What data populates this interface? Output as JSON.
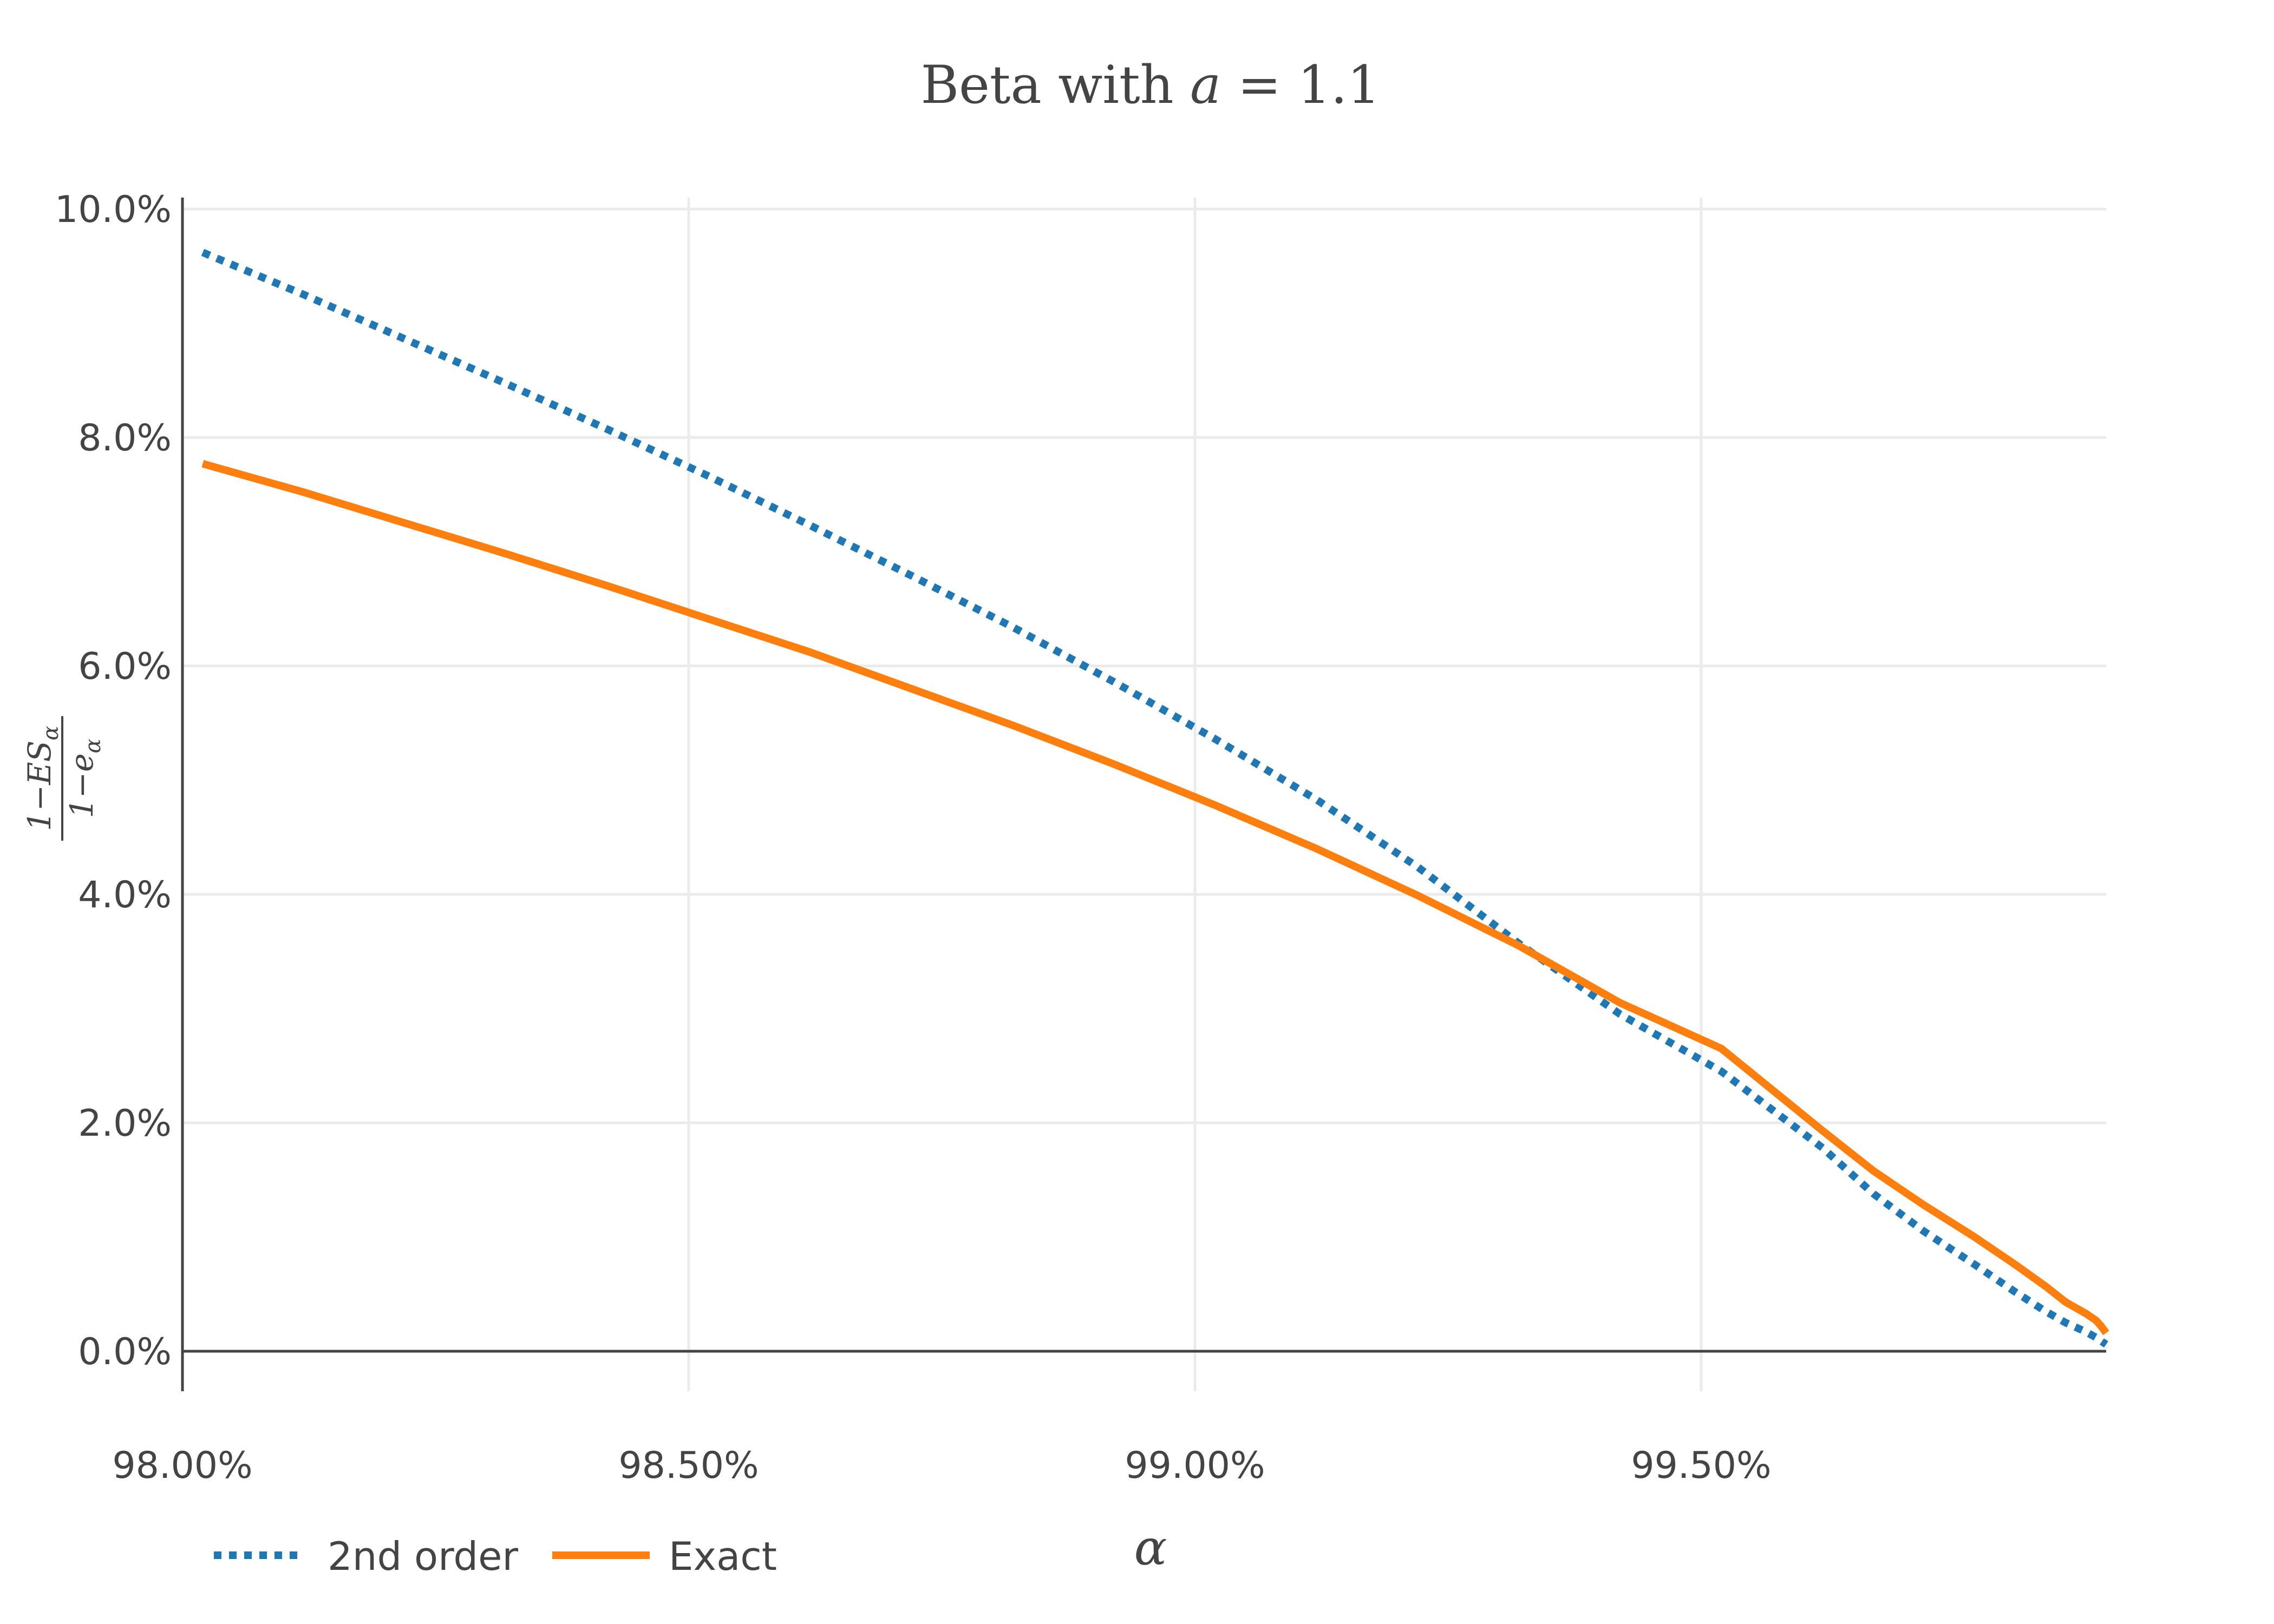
{
  "chart_data": {
    "type": "line",
    "title": {
      "prefix": "Beta with ",
      "variable": "a",
      "suffix": " = 1.1"
    },
    "xlabel": "α",
    "ylabel": {
      "numerator_prefix": "1−ES",
      "numerator_sub": "α",
      "denominator_prefix": "1−e",
      "denominator_sub": "α"
    },
    "x_range": [
      0.98,
      0.999
    ],
    "y_range": [
      -0.0035,
      0.101
    ],
    "x_ticks": [
      {
        "value": 0.98,
        "label": "98.00%"
      },
      {
        "value": 0.985,
        "label": "98.50%"
      },
      {
        "value": 0.99,
        "label": "99.00%"
      },
      {
        "value": 0.995,
        "label": "99.50%"
      }
    ],
    "y_ticks": [
      {
        "value": 0.0,
        "label": "0.0%"
      },
      {
        "value": 0.02,
        "label": "2.0%"
      },
      {
        "value": 0.04,
        "label": "4.0%"
      },
      {
        "value": 0.06,
        "label": "6.0%"
      },
      {
        "value": 0.08,
        "label": "8.0%"
      },
      {
        "value": 0.1,
        "label": "10.0%"
      }
    ],
    "grid": true,
    "legend_position": "bottom-left",
    "series": [
      {
        "name": "2nd order",
        "color": "#1f77b4",
        "dash": "dotted",
        "x": [
          0.9802,
          0.9812,
          0.9822,
          0.9832,
          0.9842,
          0.9852,
          0.9862,
          0.9872,
          0.9882,
          0.9892,
          0.9902,
          0.9912,
          0.9922,
          0.9932,
          0.9942,
          0.9952,
          0.9962,
          0.9967,
          0.9972,
          0.9977,
          0.9981,
          0.9984,
          0.9986,
          0.9988,
          0.9989,
          0.99895,
          0.999
        ],
        "y": [
          0.0962,
          0.0925,
          0.0886,
          0.0847,
          0.0807,
          0.0766,
          0.0723,
          0.0679,
          0.0634,
          0.0586,
          0.0536,
          0.0483,
          0.0424,
          0.0357,
          0.0295,
          0.0245,
          0.0178,
          0.0138,
          0.0105,
          0.0076,
          0.0052,
          0.0035,
          0.0025,
          0.0017,
          0.0012,
          0.0009,
          0.0006
        ]
      },
      {
        "name": "Exact",
        "color": "#ff7f0e",
        "dash": "solid",
        "x": [
          0.9802,
          0.9812,
          0.9822,
          0.9832,
          0.9842,
          0.9852,
          0.9862,
          0.9872,
          0.9882,
          0.9892,
          0.9902,
          0.9912,
          0.9922,
          0.9932,
          0.9942,
          0.9952,
          0.9962,
          0.9967,
          0.9972,
          0.9977,
          0.9981,
          0.9984,
          0.9986,
          0.9988,
          0.9989,
          0.99895,
          0.999
        ],
        "y": [
          0.0777,
          0.0752,
          0.0725,
          0.0698,
          0.067,
          0.0641,
          0.0612,
          0.058,
          0.0548,
          0.0514,
          0.0478,
          0.044,
          0.0399,
          0.0355,
          0.0305,
          0.0265,
          0.0193,
          0.0158,
          0.0128,
          0.01,
          0.0076,
          0.0057,
          0.0043,
          0.0033,
          0.0027,
          0.0022,
          0.0016
        ]
      }
    ]
  }
}
